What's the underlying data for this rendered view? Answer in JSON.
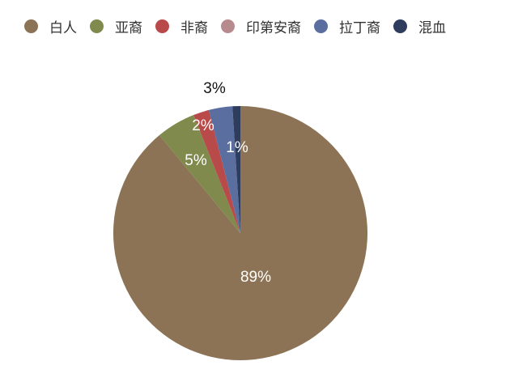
{
  "chart_data": {
    "type": "pie",
    "categories": [
      "白人",
      "亚裔",
      "非裔",
      "印第安裔",
      "拉丁裔",
      "混血"
    ],
    "values": [
      89,
      5,
      2,
      0,
      3,
      1
    ],
    "data_labels": [
      "89%",
      "5%",
      "2%",
      "",
      "3%",
      "1%"
    ],
    "colors": [
      "#8c7356",
      "#7f8a4c",
      "#b94a4a",
      "#b78a8e",
      "#5a6fa0",
      "#2e3c5e"
    ],
    "legend_position": "top",
    "start": "top, clockwise"
  }
}
